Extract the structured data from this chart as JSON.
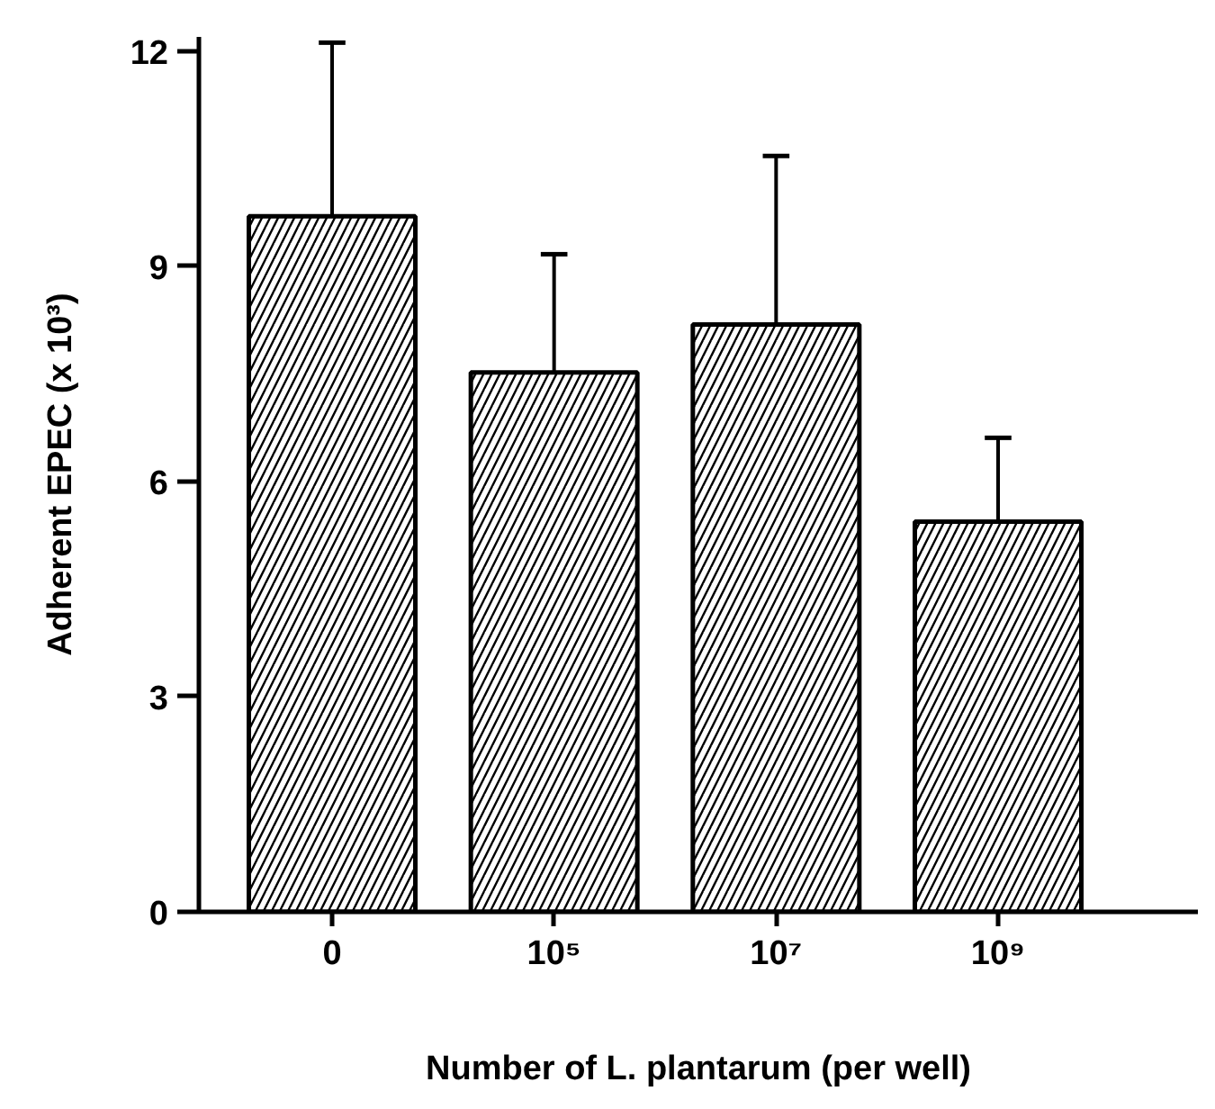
{
  "chart_data": {
    "type": "bar",
    "xlabel": "Number of L. plantarum (per well)",
    "ylabel": "Adherent EPEC (x 10³)",
    "categories": [
      "0",
      "10⁵",
      "10⁷",
      "10⁹"
    ],
    "values": [
      9.7,
      7.52,
      8.19,
      5.44
    ],
    "errors": [
      [
        9.7,
        12.12
      ],
      [
        7.52,
        9.17
      ],
      [
        8.19,
        10.54
      ],
      [
        5.44,
        6.61
      ]
    ],
    "color": "#000000",
    "ylim": [
      0,
      12.2
    ],
    "yticks": [
      0,
      3,
      6,
      9,
      12
    ],
    "grid": false
  }
}
